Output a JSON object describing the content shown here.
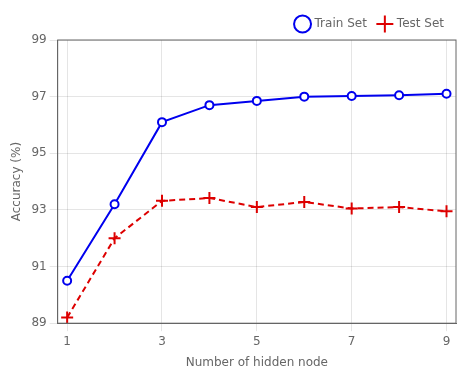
{
  "chart_data": {
    "type": "line",
    "xlabel": "Number of hidden node",
    "ylabel": "Accuracy (%)",
    "x": [
      1,
      2,
      3,
      4,
      5,
      6,
      7,
      8,
      9
    ],
    "series": [
      {
        "name": "Train Set",
        "color": "#0000ee",
        "marker": "circle",
        "line_style": "solid",
        "values": [
          90.5,
          93.2,
          96.1,
          96.7,
          96.85,
          97.0,
          97.02,
          97.05,
          97.1
        ]
      },
      {
        "name": "Test Set",
        "color": "#dd0000",
        "marker": "plus",
        "line_style": "dashed",
        "values": [
          89.2,
          92.0,
          93.32,
          93.42,
          93.1,
          93.28,
          93.05,
          93.1,
          92.95
        ]
      }
    ],
    "xlim": [
      0.8,
      9.2
    ],
    "xticks": [
      1,
      3,
      5,
      7,
      9
    ],
    "ylim": [
      89,
      99
    ],
    "yticks": [
      89,
      91,
      93,
      95,
      97,
      99
    ],
    "grid": true,
    "legend": "upper right"
  }
}
